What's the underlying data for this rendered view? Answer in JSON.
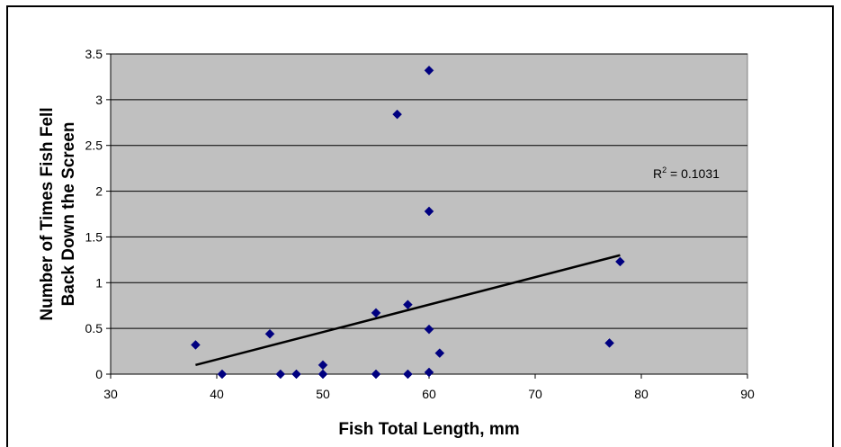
{
  "chart_data": {
    "type": "scatter",
    "xlabel": "Fish Total Length, mm",
    "ylabel_lines": [
      "Number of Times Fish Fell",
      "Back Down the Screen"
    ],
    "xlim": [
      30,
      90
    ],
    "ylim": [
      0,
      3.5
    ],
    "x_ticks": [
      "30",
      "40",
      "50",
      "60",
      "70",
      "80",
      "90"
    ],
    "y_ticks": [
      "0",
      "0.5",
      "1",
      "1.5",
      "2",
      "2.5",
      "3",
      "3.5"
    ],
    "grid": "horizontal",
    "plot_background": "#c0c0c0",
    "marker_color": "#000080",
    "series": [
      {
        "points": [
          {
            "x": 38,
            "y": 0.32
          },
          {
            "x": 40.5,
            "y": 0
          },
          {
            "x": 45,
            "y": 0.44
          },
          {
            "x": 46,
            "y": 0
          },
          {
            "x": 47.5,
            "y": 0
          },
          {
            "x": 50,
            "y": 0.1
          },
          {
            "x": 50,
            "y": 0
          },
          {
            "x": 55,
            "y": 0.67
          },
          {
            "x": 55,
            "y": 0
          },
          {
            "x": 57,
            "y": 2.84
          },
          {
            "x": 58,
            "y": 0.76
          },
          {
            "x": 58,
            "y": 0
          },
          {
            "x": 60,
            "y": 3.32
          },
          {
            "x": 60,
            "y": 1.78
          },
          {
            "x": 60,
            "y": 0.49
          },
          {
            "x": 60,
            "y": 0.02
          },
          {
            "x": 61,
            "y": 0.23
          },
          {
            "x": 77,
            "y": 0.34
          },
          {
            "x": 78,
            "y": 1.23
          }
        ]
      }
    ],
    "trendline": {
      "type": "linear",
      "x_start": 38,
      "y_start": 0.1,
      "x_end": 78,
      "y_end": 1.3,
      "color": "#000000"
    },
    "annotation": {
      "prefix": "R",
      "superscript": "2",
      "suffix": " = 0.1031"
    }
  }
}
